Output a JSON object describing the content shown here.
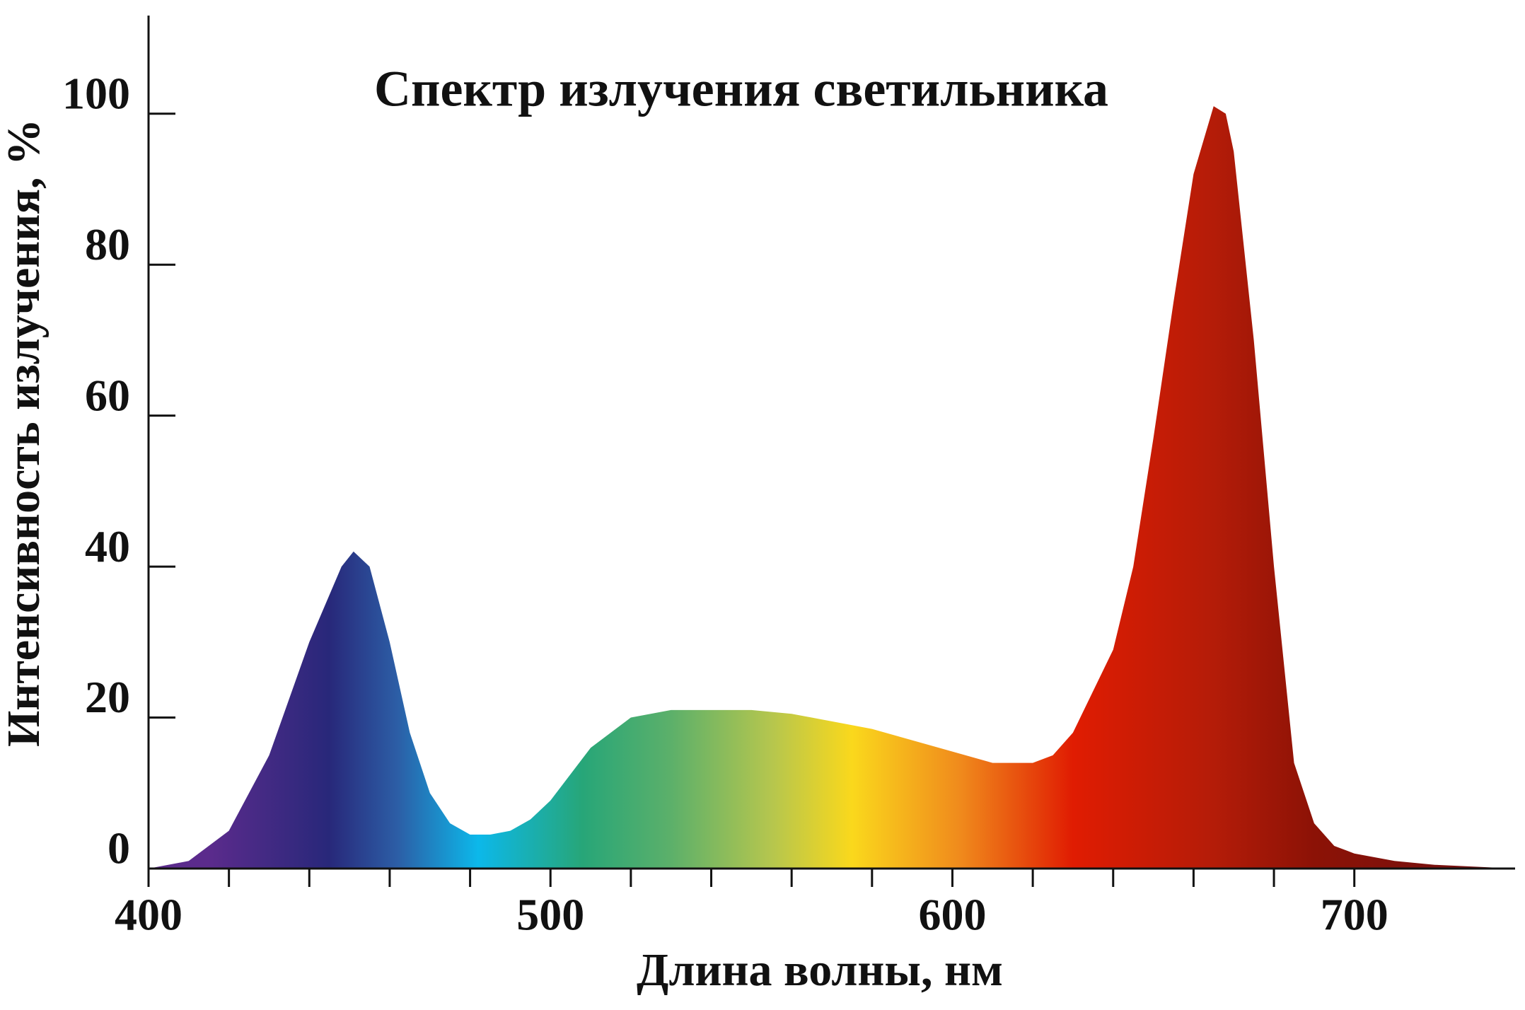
{
  "chart_data": {
    "type": "area",
    "title": "Спектр излучения светильника",
    "xlabel": "Длина волны, нм",
    "ylabel": "Интенсивность излучения, %",
    "x": [
      400,
      410,
      420,
      430,
      440,
      448,
      451,
      455,
      460,
      465,
      470,
      475,
      480,
      485,
      490,
      495,
      500,
      505,
      510,
      520,
      530,
      540,
      550,
      560,
      570,
      580,
      590,
      600,
      610,
      620,
      625,
      630,
      640,
      645,
      650,
      655,
      660,
      665,
      668,
      670,
      675,
      680,
      685,
      690,
      695,
      700,
      710,
      720,
      740
    ],
    "values": [
      0,
      1,
      5,
      15,
      30,
      40,
      42,
      40,
      30,
      18,
      10,
      6,
      4.5,
      4.5,
      5,
      6.5,
      9,
      12.5,
      16,
      20,
      21,
      21,
      21,
      20.5,
      19.5,
      18.5,
      17,
      15.5,
      14,
      14,
      15,
      18,
      29,
      40,
      57,
      75,
      92,
      101,
      100,
      95,
      70,
      40,
      14,
      6,
      3,
      2,
      1,
      0.5,
      0
    ],
    "xlim": [
      400,
      740
    ],
    "ylim": [
      0,
      113
    ],
    "xticks": [
      400,
      500,
      600,
      700
    ],
    "xminorticks": [
      420,
      440,
      460,
      480,
      520,
      540,
      560,
      580,
      620,
      640,
      660,
      680
    ],
    "yticks": [
      0,
      20,
      40,
      60,
      80,
      100
    ],
    "gradient": [
      {
        "x": 415,
        "color": "#5b2b8c"
      },
      {
        "x": 445,
        "color": "#28287a"
      },
      {
        "x": 462,
        "color": "#2c5ea6"
      },
      {
        "x": 482,
        "color": "#0cb8ea"
      },
      {
        "x": 508,
        "color": "#27a678"
      },
      {
        "x": 530,
        "color": "#5cb06a"
      },
      {
        "x": 555,
        "color": "#b5c64e"
      },
      {
        "x": 575,
        "color": "#fad81c"
      },
      {
        "x": 602,
        "color": "#f08a1c"
      },
      {
        "x": 630,
        "color": "#e01c02"
      },
      {
        "x": 665,
        "color": "#b41c08"
      },
      {
        "x": 690,
        "color": "#8c1206"
      },
      {
        "x": 730,
        "color": "#741010"
      }
    ]
  }
}
